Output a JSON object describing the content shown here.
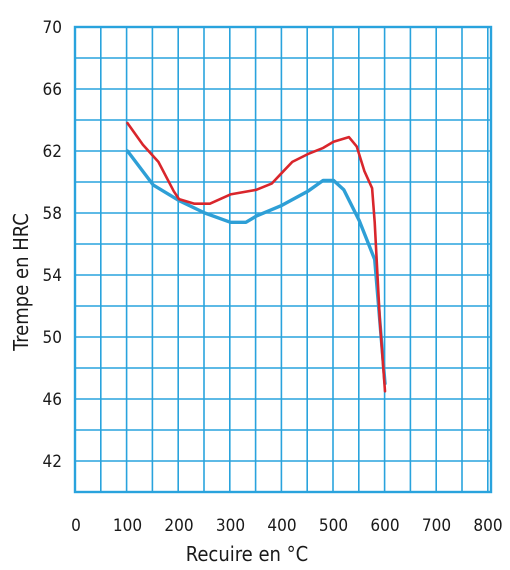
{
  "chart_data": {
    "type": "line",
    "xlabel": "Recuire en °C",
    "ylabel": "Trempe en HRC",
    "xlim": [
      0,
      800
    ],
    "ylim": [
      40,
      70
    ],
    "x_ticks": [
      "0",
      "100",
      "200",
      "300",
      "400",
      "500",
      "600",
      "700",
      "800"
    ],
    "y_ticks": [
      "70",
      "66",
      "62",
      "58",
      "54",
      "50",
      "46",
      "42"
    ],
    "grid": true,
    "grid_color": "#29a3dd",
    "series": [
      {
        "color": "#2e9fd6",
        "x": [
          100,
          150,
          200,
          250,
          300,
          330,
          350,
          400,
          450,
          480,
          500,
          520,
          550,
          580,
          600
        ],
        "y": [
          62.0,
          59.8,
          58.8,
          58.0,
          57.4,
          57.4,
          57.8,
          58.5,
          59.4,
          60.1,
          60.1,
          59.5,
          57.5,
          55.0,
          47.0
        ]
      },
      {
        "color": "#d9262c",
        "x": [
          100,
          130,
          160,
          190,
          200,
          230,
          260,
          300,
          350,
          380,
          400,
          420,
          450,
          480,
          500,
          530,
          545,
          560,
          575,
          580,
          590,
          600
        ],
        "y": [
          63.8,
          62.4,
          61.3,
          59.4,
          58.9,
          58.6,
          58.6,
          59.2,
          59.5,
          59.9,
          60.6,
          61.3,
          61.8,
          62.2,
          62.6,
          62.9,
          62.3,
          60.7,
          59.6,
          57.4,
          51.0,
          46.5
        ]
      }
    ]
  }
}
